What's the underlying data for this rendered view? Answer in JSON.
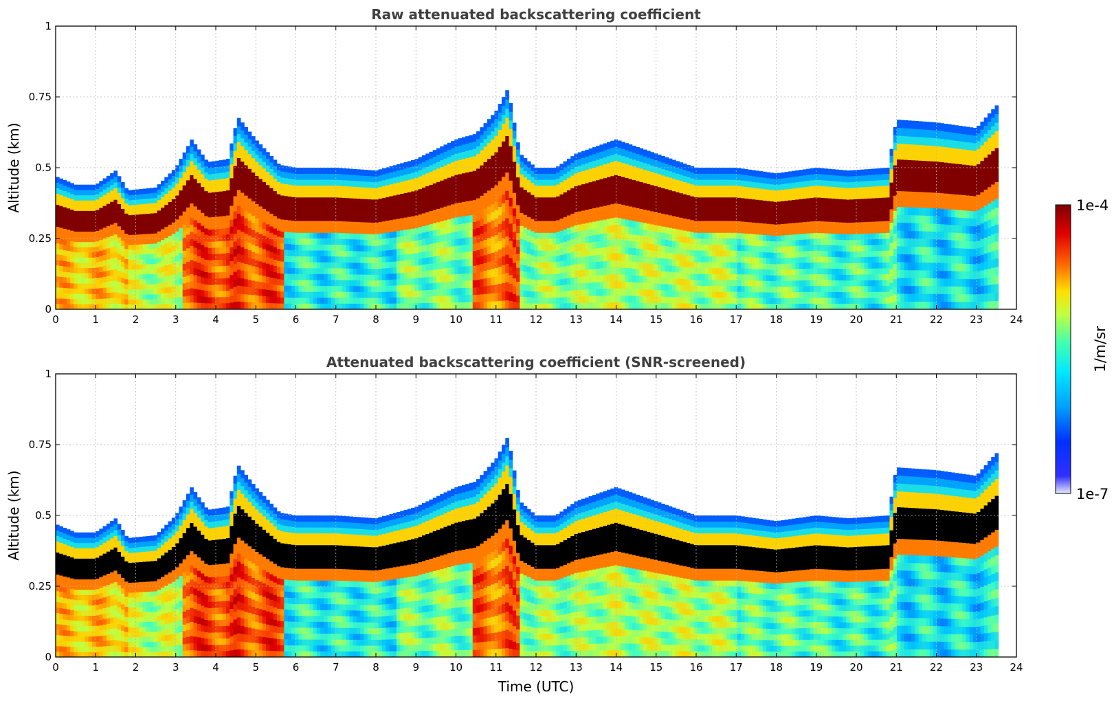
{
  "chart_data": [
    {
      "type": "heatmap",
      "title": "Raw attenuated backscattering coefficient",
      "xlabel": "",
      "ylabel": "Altitude (km)",
      "xlim": [
        0,
        24
      ],
      "ylim": [
        0,
        1
      ],
      "xticks": [
        "0",
        "1",
        "2",
        "3",
        "4",
        "5",
        "6",
        "7",
        "8",
        "9",
        "10",
        "11",
        "12",
        "13",
        "14",
        "15",
        "16",
        "17",
        "18",
        "19",
        "20",
        "21",
        "22",
        "23",
        "24"
      ],
      "yticks": [
        "0",
        "0.25",
        "0.5",
        "0.75",
        "1"
      ],
      "grid": true,
      "data_end_hour": 23.55,
      "layer_top_km": {
        "hours": [
          0,
          0.5,
          1,
          1.5,
          1.8,
          2.5,
          3,
          3.4,
          3.8,
          4.3,
          4.55,
          5,
          5.6,
          6,
          7,
          8,
          9,
          10,
          10.5,
          11,
          11.3,
          11.6,
          12,
          12.5,
          13,
          14,
          15,
          16,
          17,
          18,
          19,
          19.8,
          20.8,
          21,
          22,
          23,
          23.5
        ],
        "values": [
          0.47,
          0.44,
          0.44,
          0.49,
          0.42,
          0.43,
          0.5,
          0.6,
          0.52,
          0.53,
          0.68,
          0.6,
          0.51,
          0.5,
          0.5,
          0.49,
          0.53,
          0.6,
          0.62,
          0.7,
          0.78,
          0.55,
          0.5,
          0.5,
          0.55,
          0.6,
          0.55,
          0.5,
          0.5,
          0.48,
          0.5,
          0.49,
          0.5,
          0.67,
          0.66,
          0.64,
          0.72
        ]
      },
      "colorbar": {
        "min_label": "1e-7",
        "max_label": "1e-4",
        "unit": "1/m/sr",
        "scale": "log"
      }
    },
    {
      "type": "heatmap",
      "title": "Attenuated backscattering coefficient (SNR-screened)",
      "xlabel": "Time (UTC)",
      "ylabel": "Altitude (km)",
      "xlim": [
        0,
        24
      ],
      "ylim": [
        0,
        1
      ],
      "xticks": [
        "0",
        "1",
        "2",
        "3",
        "4",
        "5",
        "6",
        "7",
        "8",
        "9",
        "10",
        "11",
        "12",
        "13",
        "14",
        "15",
        "16",
        "17",
        "18",
        "19",
        "20",
        "21",
        "22",
        "23",
        "24"
      ],
      "yticks": [
        "0",
        "0.25",
        "0.5",
        "0.75",
        "1"
      ],
      "grid": true,
      "data_end_hour": 23.55,
      "saturated_color": "#000000",
      "colorbar": {
        "min_label": "1e-7",
        "max_label": "1e-4",
        "unit": "1/m/sr",
        "scale": "log"
      }
    }
  ],
  "colormap": [
    "#0000ff",
    "#0060ff",
    "#00c8ff",
    "#40ffc0",
    "#c0ff40",
    "#ffd000",
    "#ff6000",
    "#e00000",
    "#800000"
  ]
}
